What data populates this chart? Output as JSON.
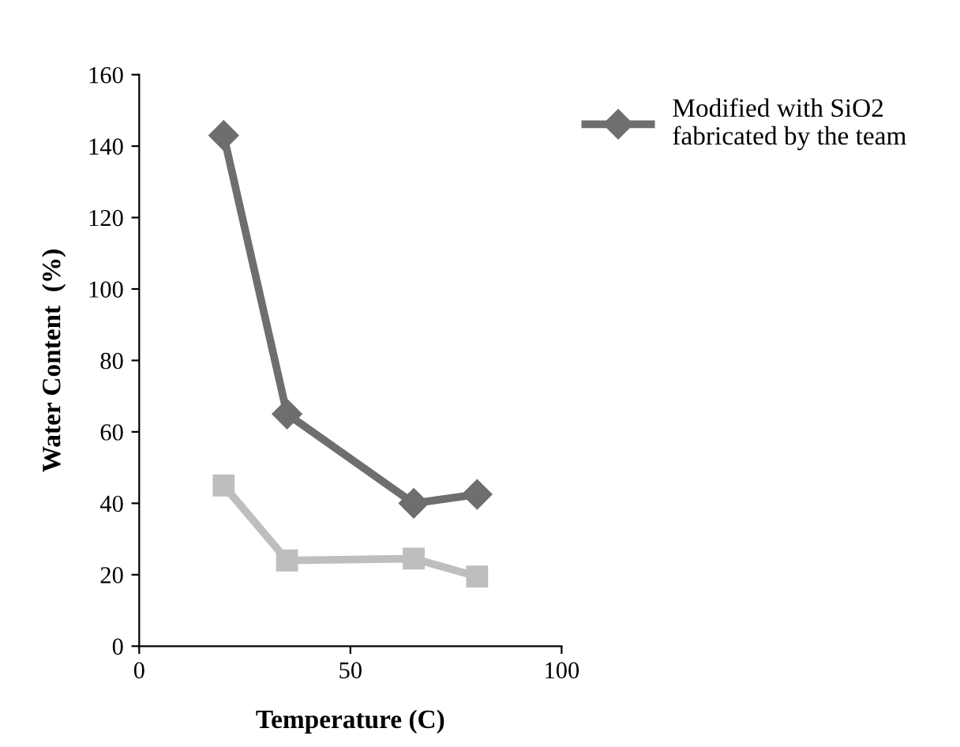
{
  "chart_data": {
    "type": "line",
    "xlabel": "Temperature (C)",
    "ylabel": "Water Content  (%)",
    "xlim": [
      0,
      100
    ],
    "xticks": [
      0,
      50,
      100
    ],
    "ylim": [
      0,
      160
    ],
    "yticks": [
      0,
      20,
      40,
      60,
      80,
      100,
      120,
      140,
      160
    ],
    "grid": false,
    "legend": "top right",
    "line_style": "solid",
    "series": [
      {
        "name": "Modified with SiO2\nfabricated by the team",
        "color": "#6e6e6e",
        "marker": "diamond",
        "x": [
          20,
          35,
          65,
          80
        ],
        "values": [
          143,
          65,
          40,
          42.5
        ]
      },
      {
        "color": "#bebebe",
        "marker": "square",
        "x": [
          20,
          35,
          65,
          80
        ],
        "values": [
          45,
          24,
          24.5,
          19.5
        ]
      }
    ]
  }
}
